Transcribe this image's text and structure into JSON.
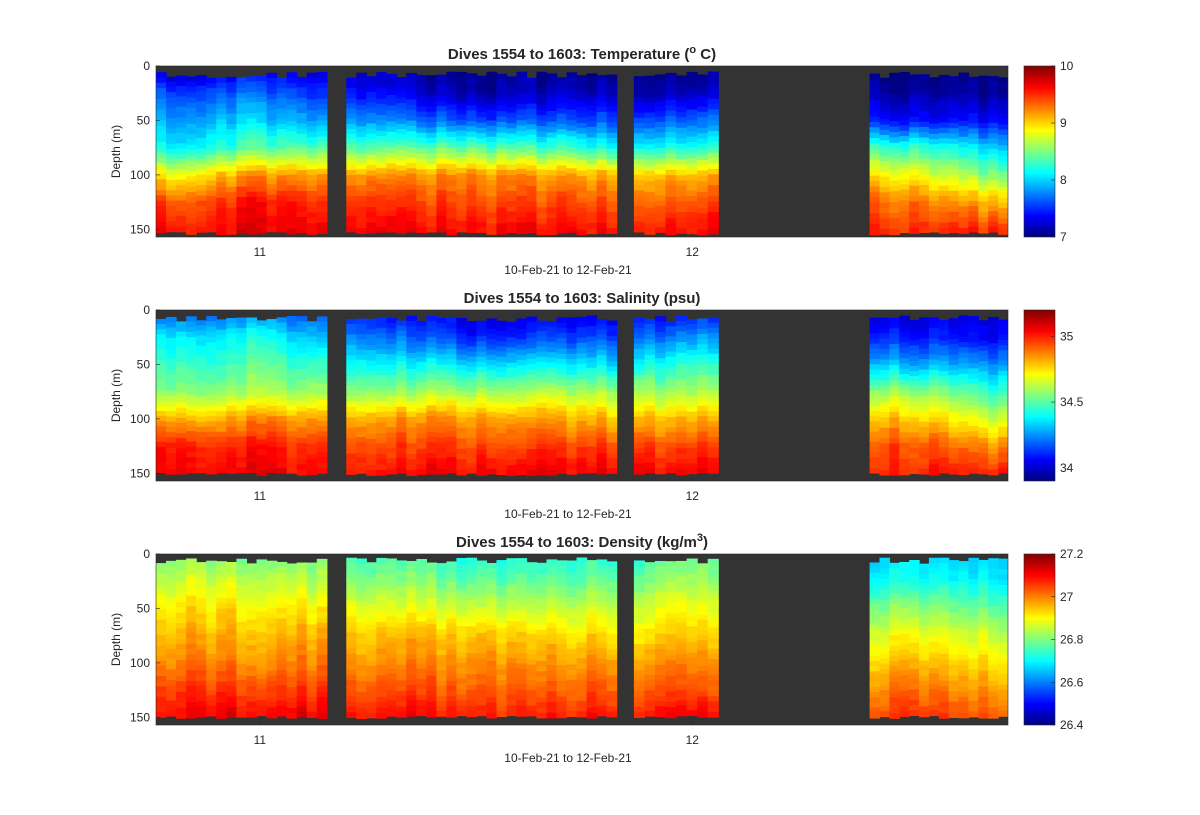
{
  "chart_data": [
    {
      "type": "heatmap",
      "variable": "temperature",
      "title": "Dives 1554 to 1603: Temperature (",
      "title_sup": "o",
      "title_end": " C)",
      "xlabel": "10-Feb-21 to 12-Feb-21",
      "ylabel": "Depth (m)",
      "x_ticks": [
        {
          "value": 11,
          "label": "11"
        },
        {
          "value": 12,
          "label": "12"
        }
      ],
      "xlim": [
        10.76,
        12.73
      ],
      "y_ticks": [
        {
          "value": 0,
          "label": "0"
        },
        {
          "value": 50,
          "label": "50"
        },
        {
          "value": 100,
          "label": "100"
        },
        {
          "value": 150,
          "label": "150"
        }
      ],
      "ylim": [
        0,
        157
      ],
      "y_reversed": true,
      "clim": [
        7,
        10
      ],
      "colorbar_ticks": [
        {
          "value": 7,
          "label": "7"
        },
        {
          "value": 8,
          "label": "8"
        },
        {
          "value": 9,
          "label": "9"
        },
        {
          "value": 10,
          "label": "10"
        }
      ],
      "colormap": "jet",
      "nodata_color": "#333333",
      "data_segments": [
        [
          10.76,
          11.155
        ],
        [
          11.2,
          11.825
        ],
        [
          11.865,
          12.06
        ],
        [
          12.41,
          12.73
        ]
      ],
      "profile_columns": 40,
      "column_depth_range_m": [
        8,
        155
      ],
      "profiles": [
        {
          "x": 10.8,
          "depth_m": [
            0,
            25,
            50,
            75,
            100,
            125,
            150
          ],
          "values": [
            7.1,
            7.6,
            7.9,
            8.1,
            8.9,
            9.4,
            9.6
          ]
        },
        {
          "x": 11.0,
          "depth_m": [
            0,
            25,
            50,
            75,
            100,
            125,
            150
          ],
          "values": [
            7.3,
            7.7,
            8.0,
            8.4,
            9.2,
            9.6,
            9.7
          ]
        },
        {
          "x": 11.5,
          "depth_m": [
            0,
            25,
            50,
            75,
            100,
            125,
            150
          ],
          "values": [
            7.0,
            7.1,
            7.6,
            8.4,
            9.2,
            9.4,
            9.6
          ]
        },
        {
          "x": 11.8,
          "depth_m": [
            0,
            25,
            50,
            75,
            100,
            125,
            150
          ],
          "values": [
            7.0,
            7.2,
            7.6,
            8.2,
            9.1,
            9.4,
            9.6
          ]
        },
        {
          "x": 12.0,
          "depth_m": [
            0,
            25,
            50,
            75,
            100,
            125,
            150
          ],
          "values": [
            7.0,
            7.2,
            7.7,
            8.2,
            9.1,
            9.4,
            9.6
          ]
        },
        {
          "x": 12.5,
          "depth_m": [
            0,
            25,
            50,
            75,
            100,
            125,
            150
          ],
          "values": [
            7.0,
            7.1,
            7.4,
            8.3,
            8.9,
            9.3,
            9.5
          ]
        },
        {
          "x": 12.7,
          "depth_m": [
            0,
            25,
            50,
            75,
            100,
            125,
            150
          ],
          "values": [
            7.0,
            7.1,
            7.4,
            8.0,
            8.5,
            9.1,
            9.5
          ]
        }
      ]
    },
    {
      "type": "heatmap",
      "variable": "salinity",
      "title": "Dives 1554 to 1603: Salinity (psu)",
      "title_sup": "",
      "title_end": "",
      "xlabel": "10-Feb-21 to 12-Feb-21",
      "ylabel": "Depth (m)",
      "x_ticks": [
        {
          "value": 11,
          "label": "11"
        },
        {
          "value": 12,
          "label": "12"
        }
      ],
      "xlim": [
        10.76,
        12.73
      ],
      "y_ticks": [
        {
          "value": 0,
          "label": "0"
        },
        {
          "value": 50,
          "label": "50"
        },
        {
          "value": 100,
          "label": "100"
        },
        {
          "value": 150,
          "label": "150"
        }
      ],
      "ylim": [
        0,
        157
      ],
      "y_reversed": true,
      "clim": [
        33.9,
        35.2
      ],
      "colorbar_ticks": [
        {
          "value": 34,
          "label": "34"
        },
        {
          "value": 34.5,
          "label": "34.5"
        },
        {
          "value": 35,
          "label": "35"
        }
      ],
      "colormap": "jet",
      "nodata_color": "#333333",
      "data_segments": [
        [
          10.76,
          11.155
        ],
        [
          11.2,
          11.825
        ],
        [
          11.865,
          12.06
        ],
        [
          12.41,
          12.73
        ]
      ],
      "profile_columns": 40,
      "column_depth_range_m": [
        8,
        152
      ],
      "profiles": [
        {
          "x": 10.8,
          "depth_m": [
            0,
            25,
            50,
            75,
            100,
            125,
            150
          ],
          "values": [
            34.15,
            34.35,
            34.45,
            34.55,
            34.8,
            35.0,
            35.05
          ]
        },
        {
          "x": 11.0,
          "depth_m": [
            0,
            25,
            50,
            75,
            100,
            125,
            150
          ],
          "values": [
            34.2,
            34.4,
            34.5,
            34.6,
            34.85,
            35.0,
            35.05
          ]
        },
        {
          "x": 11.5,
          "depth_m": [
            0,
            25,
            50,
            75,
            100,
            125,
            150
          ],
          "values": [
            34.0,
            34.1,
            34.35,
            34.6,
            34.85,
            34.95,
            35.05
          ]
        },
        {
          "x": 11.8,
          "depth_m": [
            0,
            25,
            50,
            75,
            100,
            125,
            150
          ],
          "values": [
            34.0,
            34.15,
            34.35,
            34.6,
            34.8,
            34.95,
            35.05
          ]
        },
        {
          "x": 12.0,
          "depth_m": [
            0,
            25,
            50,
            75,
            100,
            125,
            150
          ],
          "values": [
            34.05,
            34.25,
            34.45,
            34.6,
            34.8,
            34.95,
            35.05
          ]
        },
        {
          "x": 12.5,
          "depth_m": [
            0,
            25,
            50,
            75,
            100,
            125,
            150
          ],
          "values": [
            34.0,
            34.1,
            34.3,
            34.6,
            34.8,
            34.95,
            35.0
          ]
        },
        {
          "x": 12.7,
          "depth_m": [
            0,
            25,
            50,
            75,
            100,
            125,
            150
          ],
          "values": [
            34.0,
            34.05,
            34.25,
            34.45,
            34.65,
            34.85,
            35.0
          ]
        }
      ]
    },
    {
      "type": "heatmap",
      "variable": "density",
      "title": "Dives 1554 to 1603: Density (kg/m",
      "title_sup": "3",
      "title_end": ")",
      "xlabel": "10-Feb-21 to 12-Feb-21",
      "ylabel": "Depth (m)",
      "x_ticks": [
        {
          "value": 11,
          "label": "11"
        },
        {
          "value": 12,
          "label": "12"
        }
      ],
      "xlim": [
        10.76,
        12.73
      ],
      "y_ticks": [
        {
          "value": 0,
          "label": "0"
        },
        {
          "value": 50,
          "label": "50"
        },
        {
          "value": 100,
          "label": "100"
        },
        {
          "value": 150,
          "label": "150"
        }
      ],
      "ylim": [
        0,
        157
      ],
      "y_reversed": true,
      "clim": [
        26.4,
        27.2
      ],
      "colorbar_ticks": [
        {
          "value": 26.4,
          "label": "26.4"
        },
        {
          "value": 26.6,
          "label": "26.6"
        },
        {
          "value": 26.8,
          "label": "26.8"
        },
        {
          "value": 27,
          "label": "27"
        },
        {
          "value": 27.2,
          "label": "27.2"
        }
      ],
      "colormap": "jet",
      "nodata_color": "#333333",
      "data_segments": [
        [
          10.76,
          11.155
        ],
        [
          11.2,
          11.825
        ],
        [
          11.865,
          12.06
        ],
        [
          12.41,
          12.73
        ]
      ],
      "profile_columns": 40,
      "column_depth_range_m": [
        6,
        151
      ],
      "profiles": [
        {
          "x": 10.8,
          "depth_m": [
            0,
            25,
            50,
            75,
            100,
            125,
            150
          ],
          "values": [
            26.8,
            26.86,
            26.92,
            26.96,
            27.0,
            27.06,
            27.1
          ]
        },
        {
          "x": 11.0,
          "depth_m": [
            0,
            25,
            50,
            75,
            100,
            125,
            150
          ],
          "values": [
            26.8,
            26.86,
            26.92,
            26.96,
            27.0,
            27.06,
            27.12
          ]
        },
        {
          "x": 11.5,
          "depth_m": [
            0,
            25,
            50,
            75,
            100,
            125,
            150
          ],
          "values": [
            26.72,
            26.78,
            26.86,
            26.95,
            26.99,
            27.03,
            27.08
          ]
        },
        {
          "x": 11.8,
          "depth_m": [
            0,
            25,
            50,
            75,
            100,
            125,
            150
          ],
          "values": [
            26.72,
            26.78,
            26.86,
            26.92,
            26.98,
            27.03,
            27.08
          ]
        },
        {
          "x": 12.0,
          "depth_m": [
            0,
            25,
            50,
            75,
            100,
            125,
            150
          ],
          "values": [
            26.78,
            26.84,
            26.9,
            26.94,
            27.0,
            27.04,
            27.12
          ]
        },
        {
          "x": 12.5,
          "depth_m": [
            0,
            25,
            50,
            75,
            100,
            125,
            150
          ],
          "values": [
            26.66,
            26.7,
            26.8,
            26.88,
            26.94,
            27.0,
            27.05
          ]
        },
        {
          "x": 12.7,
          "depth_m": [
            0,
            25,
            50,
            75,
            100,
            125,
            150
          ],
          "values": [
            26.66,
            26.7,
            26.78,
            26.86,
            26.92,
            26.98,
            27.04
          ]
        }
      ]
    }
  ]
}
